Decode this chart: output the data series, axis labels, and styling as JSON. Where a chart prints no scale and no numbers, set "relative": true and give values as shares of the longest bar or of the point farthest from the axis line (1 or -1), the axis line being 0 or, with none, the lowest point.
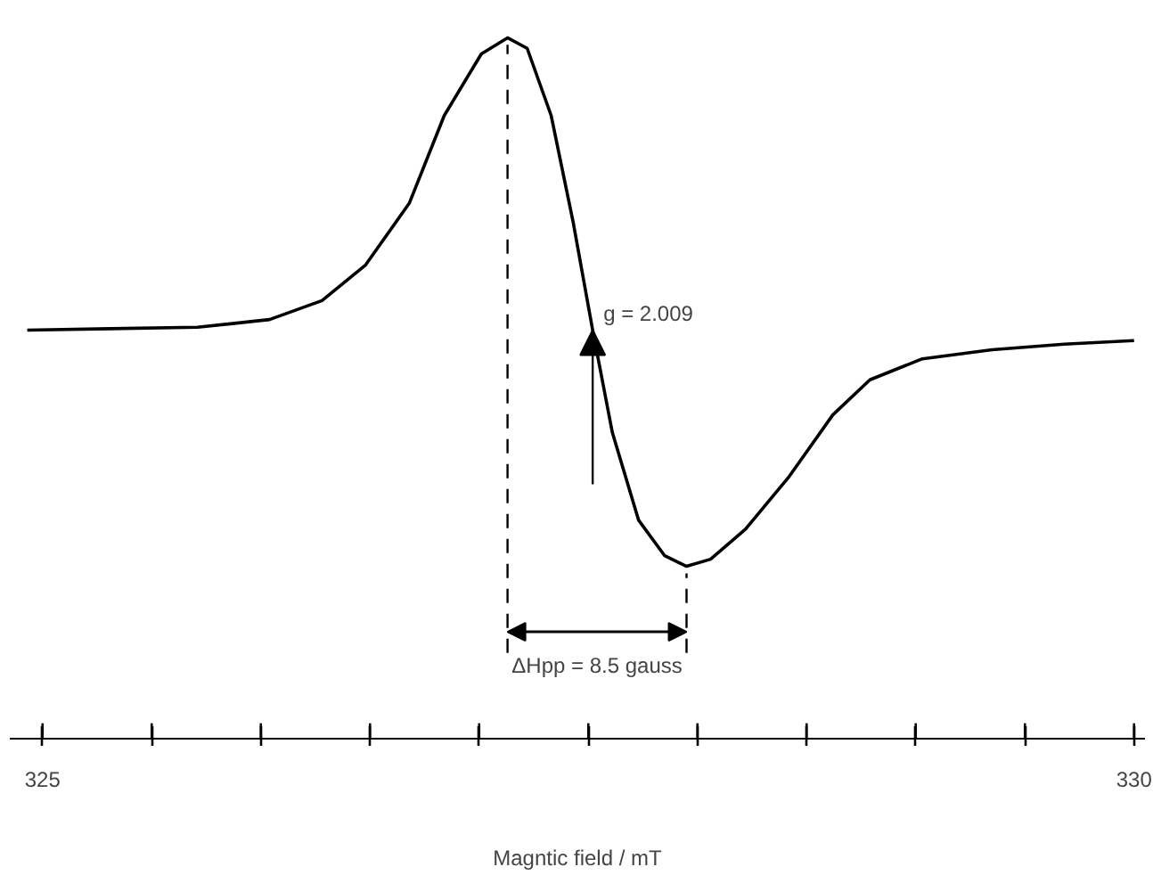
{
  "chart_data": {
    "type": "line",
    "relative": true,
    "xlabel": "Magntic field / mT",
    "xlim": [
      324.85,
      330.05
    ],
    "xticks": [
      {
        "value": 325,
        "label": "325"
      },
      {
        "value": 325.5,
        "label": null
      },
      {
        "value": 326,
        "label": null
      },
      {
        "value": 326.5,
        "label": null
      },
      {
        "value": 327,
        "label": null
      },
      {
        "value": 327.5,
        "label": null
      },
      {
        "value": 328,
        "label": null
      },
      {
        "value": 328.5,
        "label": null
      },
      {
        "value": 329,
        "label": null
      },
      {
        "value": 329.5,
        "label": null
      },
      {
        "value": 330,
        "label": "330"
      }
    ],
    "tick_labels": "x",
    "grid": false,
    "marker": "none",
    "line_style": "solid",
    "series": [
      {
        "color": "#000000",
        "x": [
          324.93,
          325.31,
          325.71,
          326.04,
          326.28,
          326.48,
          326.68,
          326.84,
          327.01,
          327.13,
          327.22,
          327.33,
          327.43,
          327.52,
          327.61,
          327.73,
          327.85,
          327.95,
          328.06,
          328.22,
          328.42,
          328.62,
          328.79,
          329.03,
          329.35,
          329.68,
          330.0
        ],
        "values": [
          0.583,
          0.585,
          0.587,
          0.598,
          0.625,
          0.676,
          0.764,
          0.889,
          0.977,
          1.0,
          0.985,
          0.889,
          0.738,
          0.583,
          0.437,
          0.312,
          0.261,
          0.246,
          0.256,
          0.299,
          0.374,
          0.462,
          0.512,
          0.542,
          0.555,
          0.563,
          0.568
        ]
      }
    ],
    "ref_lines": [
      {
        "axis": "x",
        "value": 327.13,
        "line_style": "dashed",
        "color": "#000000"
      },
      {
        "axis": "x",
        "value": 327.95,
        "line_style": "dashed",
        "color": "#000000"
      }
    ],
    "annotations": [
      {
        "text": "g = 2.009",
        "x": 327.52,
        "y": 0.583
      },
      "ΔHpp = 8.5 gauss"
    ]
  }
}
